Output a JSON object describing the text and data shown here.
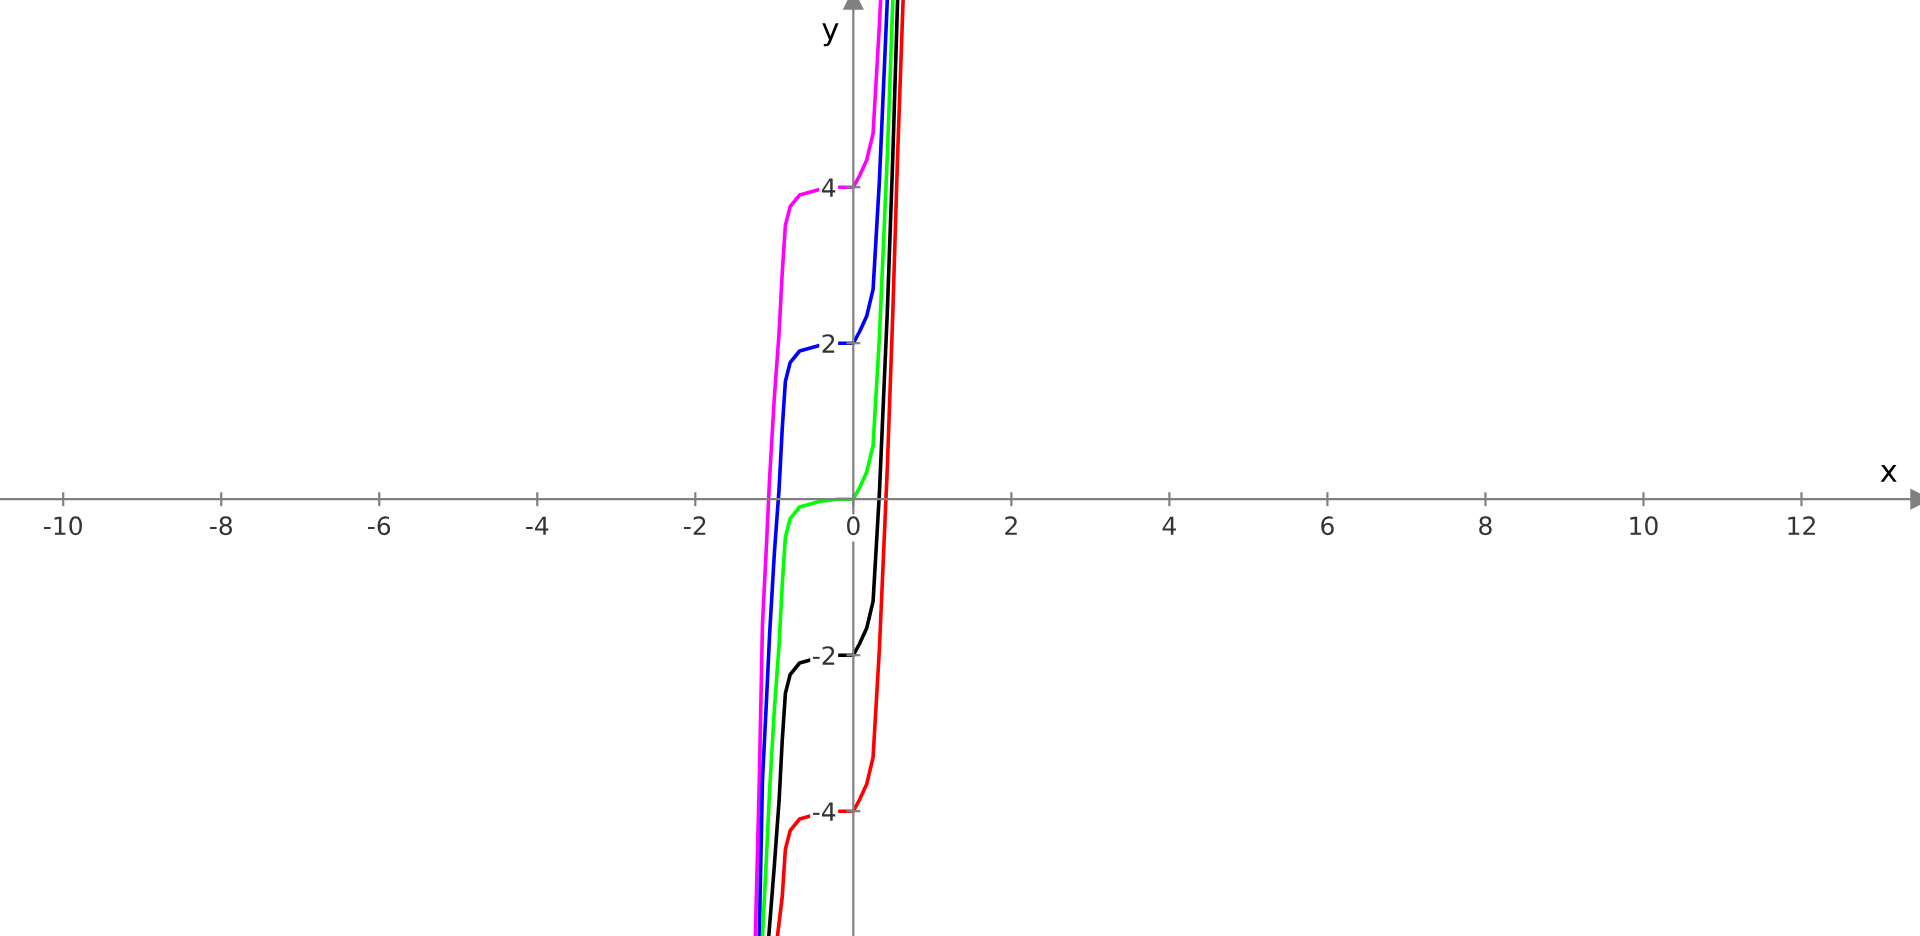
{
  "chart_data": {
    "type": "line",
    "xlabel": "x",
    "ylabel": "y",
    "xlim": [
      -10.8,
      13.5
    ],
    "ylim": [
      -5.6,
      6.4
    ],
    "xticks": [
      -10,
      -8,
      -6,
      -4,
      -2,
      0,
      2,
      4,
      6,
      8,
      10,
      12
    ],
    "yticks": [
      -4,
      -2,
      2,
      4
    ],
    "series": [
      {
        "color": "#ff00ff",
        "x": [
          -1.24,
          -1.19,
          -1.15,
          -1.1,
          -1.06,
          -1.0,
          -0.94,
          -0.9,
          -0.86,
          -0.8,
          -0.68,
          -0.43,
          -0.2,
          0,
          0.08,
          0.17,
          0.25,
          0.33,
          0.345
        ],
        "values": [
          -5.6,
          -3.6,
          -1.6,
          -0.6,
          0.26,
          1.3,
          2.13,
          2.9,
          3.51,
          3.75,
          3.9,
          3.97,
          4,
          4,
          4.15,
          4.35,
          4.69,
          6.08,
          6.4
        ]
      },
      {
        "color": "#0000ff",
        "x": [
          -1.19,
          -1.15,
          -1.1,
          -1.06,
          -1.0,
          -0.94,
          -0.9,
          -0.86,
          -0.8,
          -0.68,
          -0.43,
          -0.2,
          0,
          0.08,
          0.17,
          0.25,
          0.33,
          0.43
        ],
        "values": [
          -5.6,
          -3.6,
          -2.6,
          -1.74,
          -0.7,
          0.13,
          0.9,
          1.51,
          1.75,
          1.9,
          1.97,
          2,
          2,
          2.15,
          2.35,
          2.69,
          4.08,
          6.4
        ]
      },
      {
        "color": "#00ff00",
        "x": [
          -1.15,
          -1.1,
          -1.06,
          -1.0,
          -0.94,
          -0.9,
          -0.86,
          -0.8,
          -0.68,
          -0.43,
          -0.2,
          0,
          0.08,
          0.17,
          0.25,
          0.33,
          0.43,
          0.5
        ],
        "values": [
          -5.6,
          -4.6,
          -3.74,
          -2.7,
          -1.87,
          -1.1,
          -0.49,
          -0.25,
          -0.1,
          -0.03,
          0,
          0,
          0.15,
          0.35,
          0.69,
          2.08,
          4.4,
          6.4
        ]
      },
      {
        "color": "#000000",
        "x": [
          -1.07,
          -1.0,
          -0.94,
          -0.9,
          -0.86,
          -0.8,
          -0.68,
          -0.43,
          -0.2,
          0,
          0.08,
          0.17,
          0.25,
          0.33,
          0.43,
          0.5,
          0.56
        ],
        "values": [
          -5.6,
          -4.7,
          -3.87,
          -3.1,
          -2.49,
          -2.25,
          -2.1,
          -2.03,
          -2,
          -2,
          -1.85,
          -1.65,
          -1.31,
          0.08,
          2.4,
          4.4,
          6.4
        ]
      },
      {
        "color": "#ff0000",
        "x": [
          -0.96,
          -0.9,
          -0.86,
          -0.8,
          -0.68,
          -0.43,
          -0.2,
          0,
          0.08,
          0.17,
          0.25,
          0.33,
          0.43,
          0.5,
          0.56,
          0.63
        ],
        "values": [
          -5.6,
          -5.1,
          -4.49,
          -4.25,
          -4.1,
          -4.03,
          -4,
          -4,
          -3.85,
          -3.65,
          -3.31,
          -1.92,
          0.4,
          2.4,
          4.4,
          6.4
        ]
      }
    ]
  }
}
